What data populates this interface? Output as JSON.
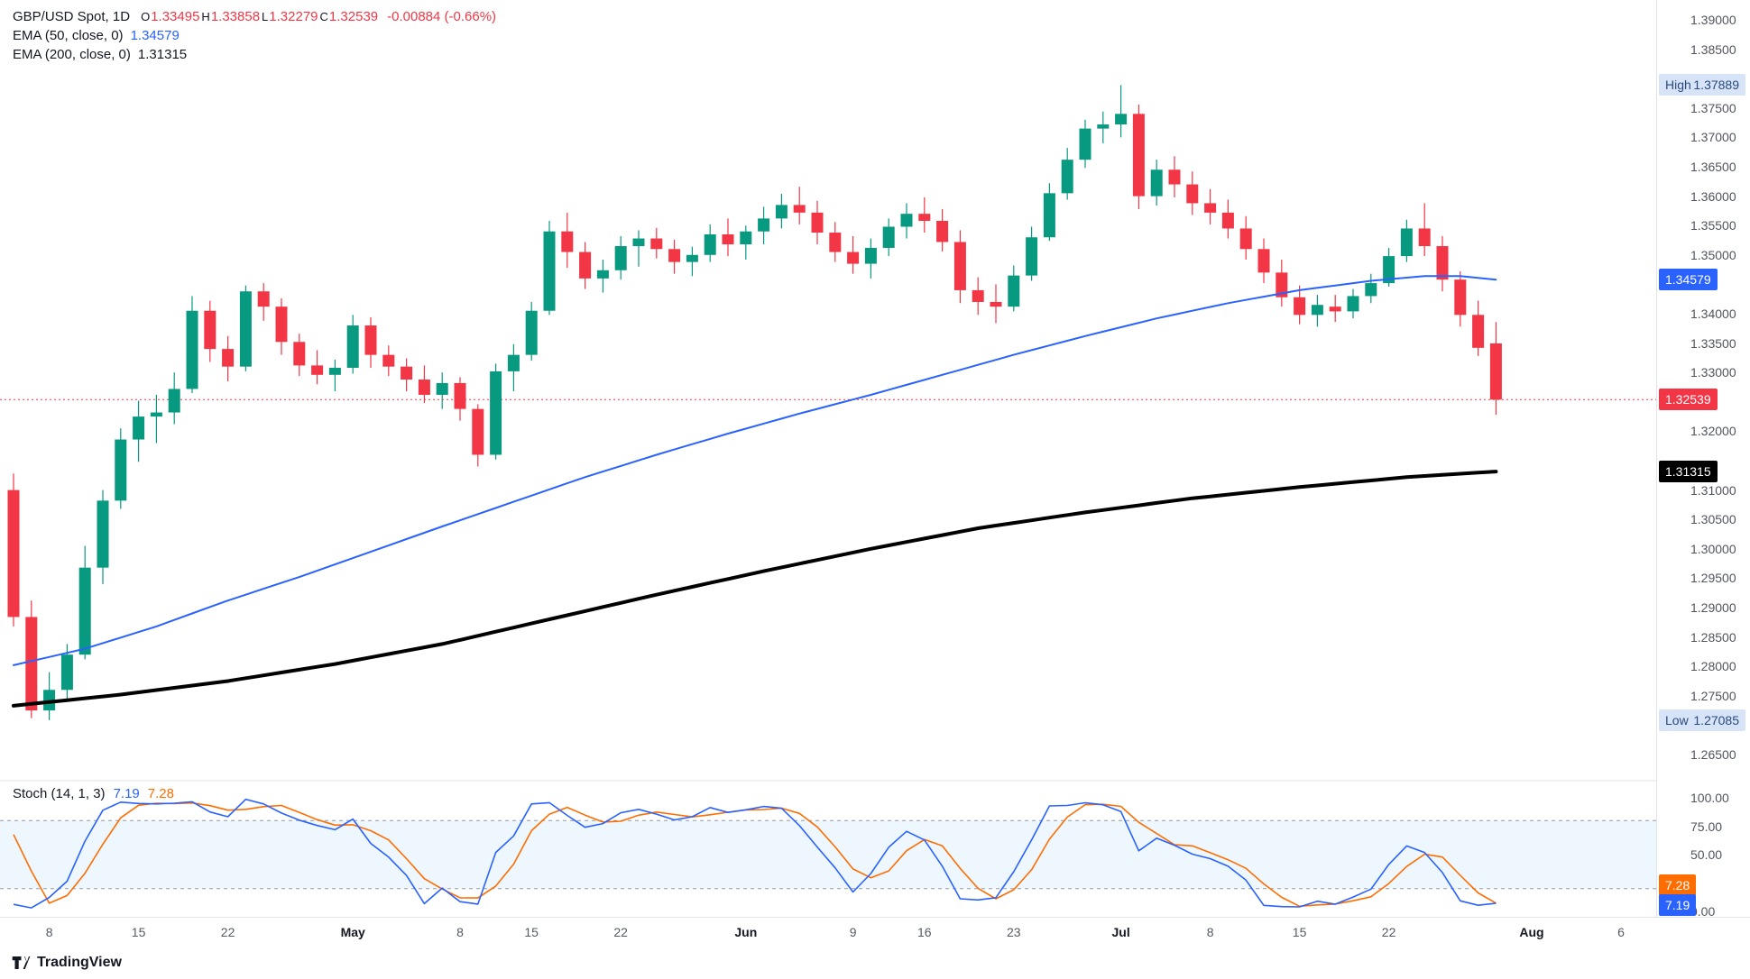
{
  "legend": {
    "symbol": "GBP/USD Spot, 1D",
    "ohlc": [
      {
        "k": "O",
        "v": "1.33495"
      },
      {
        "k": "H",
        "v": "1.33858"
      },
      {
        "k": "L",
        "v": "1.32279"
      },
      {
        "k": "C",
        "v": "1.32539"
      }
    ],
    "change": "-0.00884 (-0.66%)",
    "ema50_label": "EMA (50, close, 0)",
    "ema50_value": "1.34579",
    "ema200_label": "EMA (200, close, 0)",
    "ema200_value": "1.31315"
  },
  "stoch": {
    "label": "Stoch (14, 1, 3)",
    "k_value": "7.19",
    "d_value": "7.28"
  },
  "price_axis": {
    "labels": [
      "1.39000",
      "1.38500",
      "1.37500",
      "1.37000",
      "1.36500",
      "1.36000",
      "1.35500",
      "1.35000",
      "1.34000",
      "1.33500",
      "1.33000",
      "1.32000",
      "1.31000",
      "1.30500",
      "1.30000",
      "1.29500",
      "1.29000",
      "1.28500",
      "1.28000",
      "1.27500",
      "1.26500"
    ],
    "high_badge": {
      "label": "High",
      "value": "1.37889"
    },
    "low_badge": {
      "label": "Low",
      "value": "1.27085"
    },
    "ema50_badge": "1.34579",
    "close_badge": "1.32539",
    "ema200_badge": "1.31315"
  },
  "stoch_axis": {
    "labels": [
      {
        "text": "100.00",
        "value": 100
      },
      {
        "text": "75.00",
        "value": 75
      },
      {
        "text": "50.00",
        "value": 50
      },
      {
        "text": "0.00",
        "value": 0
      }
    ],
    "d_badge": "7.28",
    "k_badge": "7.19"
  },
  "time_axis": {
    "ticks": [
      {
        "label": "8",
        "i": 2,
        "month": false
      },
      {
        "label": "15",
        "i": 7,
        "month": false
      },
      {
        "label": "22",
        "i": 12,
        "month": false
      },
      {
        "label": "May",
        "i": 19,
        "month": true
      },
      {
        "label": "8",
        "i": 25,
        "month": false
      },
      {
        "label": "15",
        "i": 29,
        "month": false
      },
      {
        "label": "22",
        "i": 34,
        "month": false
      },
      {
        "label": "Jun",
        "i": 41,
        "month": true
      },
      {
        "label": "9",
        "i": 47,
        "month": false
      },
      {
        "label": "16",
        "i": 51,
        "month": false
      },
      {
        "label": "23",
        "i": 56,
        "month": false
      },
      {
        "label": "Jul",
        "i": 62,
        "month": true
      },
      {
        "label": "8",
        "i": 67,
        "month": false
      },
      {
        "label": "15",
        "i": 72,
        "month": false
      },
      {
        "label": "22",
        "i": 77,
        "month": false
      },
      {
        "label": "Aug",
        "i": 85,
        "month": true
      },
      {
        "label": "6",
        "i": 90,
        "month": false
      }
    ]
  },
  "footer": {
    "brand": "TradingView"
  },
  "colors": {
    "up": "#089981",
    "down": "#f23645",
    "ema50": "#2962ff",
    "ema200": "#000000",
    "stoch_k": "#2962ff",
    "stoch_d": "#ff6d00",
    "band_fill": "rgba(33,150,243,0.08)",
    "band_line": "#9598a1",
    "close_line": "#f23645",
    "hl_badge_bg": "#d7e3f7",
    "hl_badge_text": "#2a4a7f",
    "axis_text": "#50545e",
    "separator": "#e0e3eb"
  },
  "chart_data": {
    "type": "candlestick",
    "title": "GBP/USD Spot, 1D",
    "grid": false,
    "ylim": [
      1.2606,
      1.3934
    ],
    "price_line": 1.32539,
    "high_marker": 1.37889,
    "low_marker": 1.27085,
    "candles": [
      [
        1.31,
        1.3128,
        1.2868,
        1.2884
      ],
      [
        1.2884,
        1.2912,
        1.2712,
        1.2725
      ],
      [
        1.2725,
        1.279,
        1.27085,
        1.276
      ],
      [
        1.276,
        1.2838,
        1.2742,
        1.282
      ],
      [
        1.282,
        1.3005,
        1.2812,
        1.2968
      ],
      [
        1.2968,
        1.31,
        1.294,
        1.3082
      ],
      [
        1.3082,
        1.3205,
        1.3068,
        1.3186
      ],
      [
        1.3186,
        1.3252,
        1.3148,
        1.3225
      ],
      [
        1.3225,
        1.3262,
        1.318,
        1.3232
      ],
      [
        1.3232,
        1.33,
        1.3212,
        1.3272
      ],
      [
        1.3272,
        1.343,
        1.3265,
        1.3405
      ],
      [
        1.3405,
        1.3422,
        1.3318,
        1.334
      ],
      [
        1.334,
        1.3362,
        1.3285,
        1.331
      ],
      [
        1.331,
        1.3448,
        1.3302,
        1.3438
      ],
      [
        1.3438,
        1.3452,
        1.3388,
        1.3412
      ],
      [
        1.3412,
        1.3426,
        1.333,
        1.3352
      ],
      [
        1.3352,
        1.3366,
        1.3294,
        1.3312
      ],
      [
        1.3312,
        1.3338,
        1.328,
        1.3296
      ],
      [
        1.3296,
        1.3322,
        1.3268,
        1.3308
      ],
      [
        1.3308,
        1.3398,
        1.3298,
        1.338
      ],
      [
        1.338,
        1.3394,
        1.3308,
        1.333
      ],
      [
        1.333,
        1.3346,
        1.3294,
        1.331
      ],
      [
        1.331,
        1.3324,
        1.3268,
        1.3288
      ],
      [
        1.3288,
        1.3312,
        1.3248,
        1.3262
      ],
      [
        1.3262,
        1.33,
        1.3238,
        1.3282
      ],
      [
        1.3282,
        1.3292,
        1.3218,
        1.3238
      ],
      [
        1.3238,
        1.3246,
        1.314,
        1.316
      ],
      [
        1.316,
        1.3315,
        1.3152,
        1.3302
      ],
      [
        1.3302,
        1.3348,
        1.3268,
        1.333
      ],
      [
        1.333,
        1.342,
        1.332,
        1.3405
      ],
      [
        1.3405,
        1.3558,
        1.3398,
        1.354
      ],
      [
        1.354,
        1.3572,
        1.3478,
        1.3505
      ],
      [
        1.3505,
        1.3522,
        1.3442,
        1.346
      ],
      [
        1.346,
        1.3492,
        1.3436,
        1.3474
      ],
      [
        1.3474,
        1.3532,
        1.3458,
        1.3515
      ],
      [
        1.3515,
        1.3542,
        1.348,
        1.3528
      ],
      [
        1.3528,
        1.3546,
        1.3494,
        1.351
      ],
      [
        1.351,
        1.3526,
        1.3468,
        1.3488
      ],
      [
        1.3488,
        1.3514,
        1.3464,
        1.35
      ],
      [
        1.35,
        1.3552,
        1.3488,
        1.3535
      ],
      [
        1.3535,
        1.3562,
        1.3498,
        1.3518
      ],
      [
        1.3518,
        1.355,
        1.3492,
        1.354
      ],
      [
        1.354,
        1.3582,
        1.3518,
        1.3562
      ],
      [
        1.3562,
        1.3604,
        1.3545,
        1.3585
      ],
      [
        1.3585,
        1.3616,
        1.3552,
        1.3572
      ],
      [
        1.3572,
        1.3592,
        1.3518,
        1.3538
      ],
      [
        1.3538,
        1.3556,
        1.3488,
        1.3505
      ],
      [
        1.3505,
        1.3532,
        1.3468,
        1.3485
      ],
      [
        1.3485,
        1.3528,
        1.346,
        1.3512
      ],
      [
        1.3512,
        1.3562,
        1.3498,
        1.3548
      ],
      [
        1.3548,
        1.3588,
        1.3528,
        1.357
      ],
      [
        1.357,
        1.3598,
        1.3538,
        1.3558
      ],
      [
        1.3558,
        1.3578,
        1.3506,
        1.3522
      ],
      [
        1.3522,
        1.3542,
        1.3418,
        1.344
      ],
      [
        1.344,
        1.3462,
        1.3398,
        1.342
      ],
      [
        1.342,
        1.345,
        1.3384,
        1.3412
      ],
      [
        1.3412,
        1.3482,
        1.3404,
        1.3465
      ],
      [
        1.3465,
        1.3548,
        1.3456,
        1.353
      ],
      [
        1.353,
        1.3622,
        1.3524,
        1.3605
      ],
      [
        1.3605,
        1.3682,
        1.3594,
        1.3662
      ],
      [
        1.3662,
        1.373,
        1.3648,
        1.3715
      ],
      [
        1.3715,
        1.3744,
        1.369,
        1.3722
      ],
      [
        1.3722,
        1.3789,
        1.37,
        1.374
      ],
      [
        1.374,
        1.3756,
        1.3578,
        1.36
      ],
      [
        1.36,
        1.3662,
        1.3584,
        1.3645
      ],
      [
        1.3645,
        1.3668,
        1.3598,
        1.362
      ],
      [
        1.362,
        1.3642,
        1.3568,
        1.3588
      ],
      [
        1.3588,
        1.3612,
        1.3552,
        1.3572
      ],
      [
        1.3572,
        1.3594,
        1.3528,
        1.3545
      ],
      [
        1.3545,
        1.3566,
        1.3492,
        1.351
      ],
      [
        1.351,
        1.3528,
        1.3452,
        1.347
      ],
      [
        1.347,
        1.3492,
        1.3412,
        1.3428
      ],
      [
        1.3428,
        1.3448,
        1.3382,
        1.3398
      ],
      [
        1.3398,
        1.3432,
        1.3378,
        1.3415
      ],
      [
        1.3412,
        1.3432,
        1.3386,
        1.3404
      ],
      [
        1.3404,
        1.3442,
        1.3392,
        1.343
      ],
      [
        1.343,
        1.3468,
        1.3418,
        1.3452
      ],
      [
        1.3452,
        1.3512,
        1.3446,
        1.3498
      ],
      [
        1.3498,
        1.356,
        1.3488,
        1.3545
      ],
      [
        1.3545,
        1.3588,
        1.3498,
        1.3515
      ],
      [
        1.3515,
        1.3532,
        1.3438,
        1.3458
      ],
      [
        1.3458,
        1.3472,
        1.3378,
        1.3398
      ],
      [
        1.3398,
        1.3422,
        1.3328,
        1.3342
      ],
      [
        1.33495,
        1.33858,
        1.32279,
        1.32539
      ]
    ],
    "overlays": [
      {
        "name": "EMA 50",
        "color_key": "ema50",
        "width": 2,
        "points": [
          [
            0,
            1.2802
          ],
          [
            4,
            1.283
          ],
          [
            8,
            1.2868
          ],
          [
            12,
            1.2912
          ],
          [
            16,
            1.2952
          ],
          [
            20,
            1.2995
          ],
          [
            24,
            1.3038
          ],
          [
            28,
            1.308
          ],
          [
            32,
            1.3122
          ],
          [
            36,
            1.316
          ],
          [
            40,
            1.3196
          ],
          [
            44,
            1.323
          ],
          [
            48,
            1.3262
          ],
          [
            52,
            1.3296
          ],
          [
            56,
            1.333
          ],
          [
            60,
            1.3362
          ],
          [
            64,
            1.3392
          ],
          [
            68,
            1.3418
          ],
          [
            72,
            1.344
          ],
          [
            76,
            1.3456
          ],
          [
            79,
            1.3464
          ],
          [
            81,
            1.3464
          ],
          [
            83,
            1.34579
          ]
        ]
      },
      {
        "name": "EMA 200",
        "color_key": "ema200",
        "width": 4,
        "points": [
          [
            0,
            1.2733
          ],
          [
            6,
            1.2752
          ],
          [
            12,
            1.2775
          ],
          [
            18,
            1.2804
          ],
          [
            24,
            1.2838
          ],
          [
            30,
            1.288
          ],
          [
            36,
            1.2922
          ],
          [
            42,
            1.2962
          ],
          [
            48,
            1.3
          ],
          [
            54,
            1.3035
          ],
          [
            60,
            1.3062
          ],
          [
            66,
            1.3086
          ],
          [
            72,
            1.3105
          ],
          [
            78,
            1.3122
          ],
          [
            83,
            1.31315
          ]
        ]
      }
    ],
    "sub_chart": {
      "type": "stochastic",
      "params": [
        14,
        1,
        3
      ],
      "k": 7.19,
      "d": 7.28,
      "bands": [
        80,
        20
      ],
      "range": [
        0,
        100
      ],
      "d_seed": [
        100,
        97
      ]
    }
  }
}
